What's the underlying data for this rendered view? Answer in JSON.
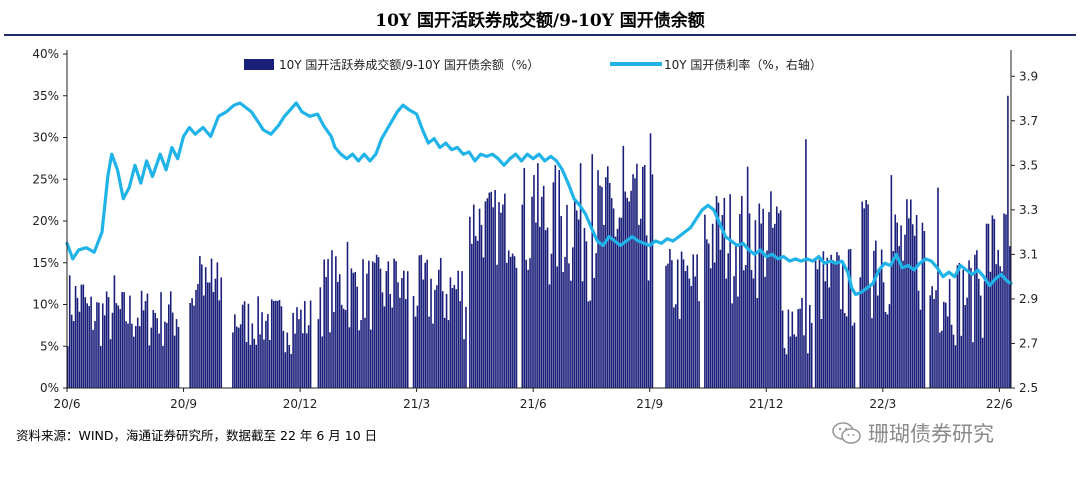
{
  "header": {
    "title": "10Y 国开活跃券成交额/9-10Y 国开债余额"
  },
  "footer": {
    "source": "资料来源：WIND，海通证券研究所，数据截至 22 年 6 月 10 日",
    "watermark": "珊瑚债券研究"
  },
  "colors": {
    "bar": "#1a1f7a",
    "line": "#1fb3e8",
    "rule": "#1f2a63"
  },
  "chart_data": {
    "type": "bar+line",
    "x_ticks": [
      "20/6",
      "20/9",
      "20/12",
      "21/3",
      "21/6",
      "21/9",
      "21/12",
      "22/3",
      "22/6"
    ],
    "x_tick_months": [
      0,
      3,
      6,
      9,
      12,
      15,
      18,
      21,
      24
    ],
    "x_range_months": [
      0,
      24.3
    ],
    "y_left": {
      "ticks": [
        "0%",
        "5%",
        "10%",
        "15%",
        "20%",
        "25%",
        "30%",
        "35%",
        "40%"
      ],
      "range": [
        0,
        40
      ]
    },
    "y_right": {
      "ticks": [
        "2.5",
        "2.7",
        "2.9",
        "3.1",
        "3.3",
        "3.5",
        "3.7",
        "3.9"
      ],
      "range": [
        2.5,
        4.0
      ]
    },
    "legend": {
      "bars": "10Y 国开活跃券成交额/9-10Y 国开债余额（%）",
      "line": "10Y 国开债利率（%，右轴）",
      "placement": "top"
    },
    "series": [
      {
        "name": "10Y 国开活跃券成交额/9-10Y 国开债余额（%）",
        "kind": "bar",
        "axis": "left",
        "segments": [
          {
            "from": 0.0,
            "to": 0.5,
            "lo": 5,
            "hi": 14
          },
          {
            "from": 0.5,
            "to": 2.9,
            "lo": 4,
            "hi": 12
          },
          {
            "from": 3.15,
            "to": 4.0,
            "lo": 5,
            "hi": 15.5
          },
          {
            "from": 4.25,
            "to": 6.3,
            "lo": 4,
            "hi": 11
          },
          {
            "from": 6.45,
            "to": 8.8,
            "lo": 6,
            "hi": 16
          },
          {
            "from": 8.9,
            "to": 10.3,
            "lo": 5,
            "hi": 16
          },
          {
            "from": 10.35,
            "to": 11.6,
            "lo": 14,
            "hi": 24
          },
          {
            "from": 11.7,
            "to": 15.1,
            "lo": 10,
            "hi": 27
          },
          {
            "from": 15.4,
            "to": 16.3,
            "lo": 6,
            "hi": 17
          },
          {
            "from": 16.4,
            "to": 18.4,
            "lo": 10,
            "hi": 24
          },
          {
            "from": 18.4,
            "to": 19.2,
            "lo": 3,
            "hi": 12
          },
          {
            "from": 19.25,
            "to": 20.3,
            "lo": 6,
            "hi": 17
          },
          {
            "from": 20.4,
            "to": 22.1,
            "lo": 7,
            "hi": 23
          },
          {
            "from": 22.2,
            "to": 23.6,
            "lo": 5,
            "hi": 16
          },
          {
            "from": 23.6,
            "to": 24.3,
            "lo": 9,
            "hi": 22
          }
        ],
        "peaks": [
          {
            "x": 1.2,
            "y": 13.5
          },
          {
            "x": 3.4,
            "y": 15.8
          },
          {
            "x": 3.7,
            "y": 15.5
          },
          {
            "x": 6.8,
            "y": 16.5
          },
          {
            "x": 7.2,
            "y": 17.5
          },
          {
            "x": 8.4,
            "y": 15.5
          },
          {
            "x": 10.9,
            "y": 23.5
          },
          {
            "x": 12.0,
            "y": 25.5
          },
          {
            "x": 13.5,
            "y": 28
          },
          {
            "x": 14.3,
            "y": 29
          },
          {
            "x": 15.0,
            "y": 30.5
          },
          {
            "x": 17.5,
            "y": 26.5
          },
          {
            "x": 19.0,
            "y": 29.8
          },
          {
            "x": 20.6,
            "y": 22
          },
          {
            "x": 21.2,
            "y": 25.5
          },
          {
            "x": 22.4,
            "y": 24
          },
          {
            "x": 23.4,
            "y": 16.5
          },
          {
            "x": 24.2,
            "y": 35
          },
          {
            "x": 24.3,
            "y": 33.5
          }
        ]
      },
      {
        "name": "10Y 国开债利率（%，右轴）",
        "kind": "line",
        "axis": "right",
        "points": [
          [
            0.0,
            3.15
          ],
          [
            0.15,
            3.08
          ],
          [
            0.3,
            3.12
          ],
          [
            0.5,
            3.13
          ],
          [
            0.7,
            3.11
          ],
          [
            0.9,
            3.2
          ],
          [
            1.05,
            3.45
          ],
          [
            1.15,
            3.55
          ],
          [
            1.3,
            3.48
          ],
          [
            1.45,
            3.35
          ],
          [
            1.6,
            3.4
          ],
          [
            1.75,
            3.5
          ],
          [
            1.9,
            3.42
          ],
          [
            2.05,
            3.52
          ],
          [
            2.2,
            3.45
          ],
          [
            2.4,
            3.55
          ],
          [
            2.55,
            3.48
          ],
          [
            2.7,
            3.58
          ],
          [
            2.85,
            3.53
          ],
          [
            3.0,
            3.63
          ],
          [
            3.15,
            3.67
          ],
          [
            3.3,
            3.64
          ],
          [
            3.5,
            3.67
          ],
          [
            3.7,
            3.63
          ],
          [
            3.9,
            3.72
          ],
          [
            4.1,
            3.74
          ],
          [
            4.3,
            3.77
          ],
          [
            4.45,
            3.78
          ],
          [
            4.6,
            3.76
          ],
          [
            4.75,
            3.74
          ],
          [
            4.9,
            3.7
          ],
          [
            5.05,
            3.66
          ],
          [
            5.25,
            3.64
          ],
          [
            5.45,
            3.68
          ],
          [
            5.6,
            3.72
          ],
          [
            5.75,
            3.75
          ],
          [
            5.9,
            3.78
          ],
          [
            6.05,
            3.74
          ],
          [
            6.25,
            3.72
          ],
          [
            6.45,
            3.73
          ],
          [
            6.6,
            3.68
          ],
          [
            6.8,
            3.63
          ],
          [
            6.9,
            3.58
          ],
          [
            7.05,
            3.55
          ],
          [
            7.2,
            3.53
          ],
          [
            7.35,
            3.55
          ],
          [
            7.5,
            3.52
          ],
          [
            7.65,
            3.55
          ],
          [
            7.8,
            3.52
          ],
          [
            7.95,
            3.55
          ],
          [
            8.1,
            3.62
          ],
          [
            8.3,
            3.68
          ],
          [
            8.5,
            3.74
          ],
          [
            8.65,
            3.77
          ],
          [
            8.8,
            3.75
          ],
          [
            9.0,
            3.73
          ],
          [
            9.15,
            3.66
          ],
          [
            9.3,
            3.6
          ],
          [
            9.45,
            3.62
          ],
          [
            9.6,
            3.58
          ],
          [
            9.75,
            3.6
          ],
          [
            9.9,
            3.57
          ],
          [
            10.05,
            3.58
          ],
          [
            10.2,
            3.55
          ],
          [
            10.35,
            3.56
          ],
          [
            10.5,
            3.52
          ],
          [
            10.65,
            3.55
          ],
          [
            10.8,
            3.54
          ],
          [
            10.95,
            3.55
          ],
          [
            11.1,
            3.53
          ],
          [
            11.25,
            3.5
          ],
          [
            11.4,
            3.53
          ],
          [
            11.55,
            3.55
          ],
          [
            11.7,
            3.52
          ],
          [
            11.85,
            3.55
          ],
          [
            12.0,
            3.53
          ],
          [
            12.15,
            3.55
          ],
          [
            12.3,
            3.52
          ],
          [
            12.45,
            3.54
          ],
          [
            12.6,
            3.52
          ],
          [
            12.75,
            3.48
          ],
          [
            12.9,
            3.42
          ],
          [
            13.05,
            3.35
          ],
          [
            13.2,
            3.32
          ],
          [
            13.35,
            3.28
          ],
          [
            13.5,
            3.22
          ],
          [
            13.65,
            3.16
          ],
          [
            13.8,
            3.14
          ],
          [
            13.95,
            3.18
          ],
          [
            14.1,
            3.16
          ],
          [
            14.25,
            3.14
          ],
          [
            14.4,
            3.16
          ],
          [
            14.55,
            3.18
          ],
          [
            14.7,
            3.16
          ],
          [
            14.85,
            3.15
          ],
          [
            15.0,
            3.14
          ],
          [
            15.15,
            3.16
          ],
          [
            15.3,
            3.15
          ],
          [
            15.45,
            3.17
          ],
          [
            15.6,
            3.16
          ],
          [
            15.75,
            3.18
          ],
          [
            15.9,
            3.2
          ],
          [
            16.05,
            3.22
          ],
          [
            16.2,
            3.26
          ],
          [
            16.35,
            3.3
          ],
          [
            16.5,
            3.32
          ],
          [
            16.65,
            3.3
          ],
          [
            16.8,
            3.24
          ],
          [
            16.95,
            3.18
          ],
          [
            17.1,
            3.16
          ],
          [
            17.25,
            3.14
          ],
          [
            17.4,
            3.15
          ],
          [
            17.55,
            3.12
          ],
          [
            17.7,
            3.1
          ],
          [
            17.85,
            3.12
          ],
          [
            18.0,
            3.09
          ],
          [
            18.15,
            3.1
          ],
          [
            18.3,
            3.08
          ],
          [
            18.45,
            3.09
          ],
          [
            18.6,
            3.07
          ],
          [
            18.75,
            3.08
          ],
          [
            18.9,
            3.07
          ],
          [
            19.05,
            3.08
          ],
          [
            19.2,
            3.07
          ],
          [
            19.35,
            3.09
          ],
          [
            19.5,
            3.06
          ],
          [
            19.65,
            3.07
          ],
          [
            19.8,
            3.06
          ],
          [
            19.95,
            3.07
          ],
          [
            20.1,
            3.02
          ],
          [
            20.2,
            2.95
          ],
          [
            20.3,
            2.92
          ],
          [
            20.45,
            2.93
          ],
          [
            20.6,
            2.95
          ],
          [
            20.75,
            2.97
          ],
          [
            20.9,
            3.03
          ],
          [
            21.05,
            3.06
          ],
          [
            21.2,
            3.05
          ],
          [
            21.35,
            3.1
          ],
          [
            21.5,
            3.04
          ],
          [
            21.65,
            3.05
          ],
          [
            21.8,
            3.03
          ],
          [
            21.95,
            3.06
          ],
          [
            22.1,
            3.08
          ],
          [
            22.25,
            3.07
          ],
          [
            22.4,
            3.04
          ],
          [
            22.55,
            3.0
          ],
          [
            22.7,
            3.02
          ],
          [
            22.85,
            3.0
          ],
          [
            23.0,
            3.05
          ],
          [
            23.15,
            3.03
          ],
          [
            23.3,
            3.01
          ],
          [
            23.45,
            3.03
          ],
          [
            23.6,
            3.0
          ],
          [
            23.75,
            2.96
          ],
          [
            23.9,
            2.99
          ],
          [
            24.05,
            3.01
          ],
          [
            24.2,
            2.98
          ],
          [
            24.3,
            2.97
          ]
        ]
      }
    ]
  }
}
